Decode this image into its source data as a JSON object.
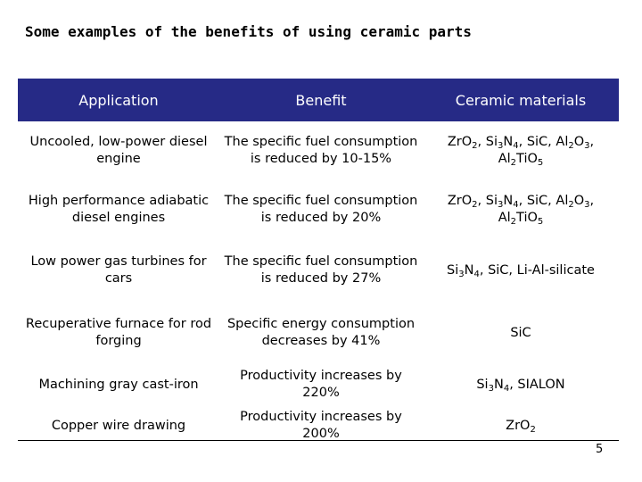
{
  "title": "Some examples of the benefits of using ceramic parts",
  "table": {
    "headers": [
      "Application",
      "Benefit",
      "Ceramic materials"
    ],
    "rows": [
      {
        "application": "Uncooled, low-power diesel engine",
        "benefit": "The specific fuel consumption is reduced by 10-15%",
        "materials": "ZrO2, Si3N4, SiC, Al2O3, Al2TiO5"
      },
      {
        "application": "High performance adiabatic diesel engines",
        "benefit": "The specific fuel consumption is reduced by 20%",
        "materials": "ZrO2, Si3N4, SiC, Al2O3, Al2TiO5"
      },
      {
        "application": "Low power gas turbines for cars",
        "benefit": "The specific fuel consumption is reduced by 27%",
        "materials": "Si3N4, SiC, Li-Al-silicate"
      },
      {
        "application": "Recuperative furnace for rod forging",
        "benefit": "Specific energy consumption decreases by 41%",
        "materials": "SiC"
      },
      {
        "application": "Machining gray cast-iron",
        "benefit": "Productivity increases by 220%",
        "materials": "Si3N4, SIALON"
      },
      {
        "application": "Copper wire drawing",
        "benefit": "Productivity increases by 200%",
        "materials": "ZrO2"
      }
    ]
  },
  "page_number": "5"
}
